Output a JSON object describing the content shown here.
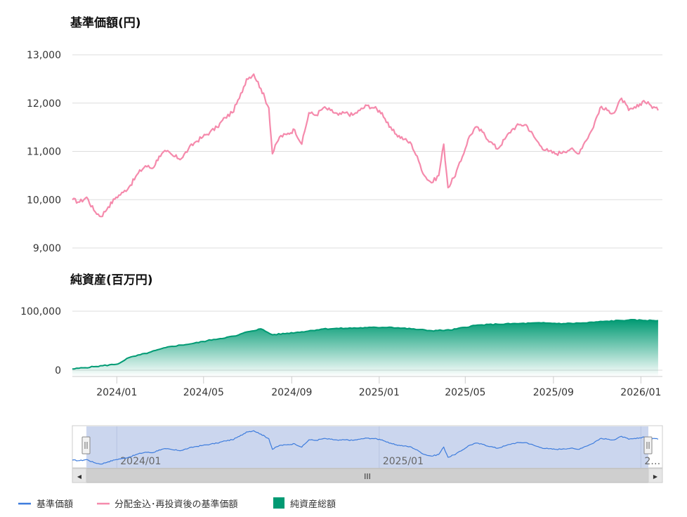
{
  "chart_data": [
    {
      "type": "line",
      "title": "基準価額(円)",
      "ylim": [
        9000,
        13000
      ],
      "yticks": [
        9000,
        10000,
        11000,
        12000,
        13000
      ],
      "ytick_labels": [
        "9,000",
        "10,000",
        "11,000",
        "12,000",
        "13,000"
      ],
      "series": [
        {
          "name": "分配金込･再投資後の基準価額",
          "color": "#f58aac",
          "points": [
            [
              "2023-10-31",
              10000
            ],
            [
              "2023-11-10",
              9950
            ],
            [
              "2023-11-20",
              10050
            ],
            [
              "2023-11-30",
              9780
            ],
            [
              "2023-12-10",
              9650
            ],
            [
              "2023-12-20",
              9850
            ],
            [
              "2023-12-31",
              10050
            ],
            [
              "2024-01-10",
              10150
            ],
            [
              "2024-01-20",
              10300
            ],
            [
              "2024-01-31",
              10550
            ],
            [
              "2024-02-10",
              10700
            ],
            [
              "2024-02-20",
              10650
            ],
            [
              "2024-02-29",
              10900
            ],
            [
              "2024-03-10",
              11000
            ],
            [
              "2024-03-20",
              10900
            ],
            [
              "2024-03-31",
              10850
            ],
            [
              "2024-04-10",
              11050
            ],
            [
              "2024-04-20",
              11200
            ],
            [
              "2024-04-30",
              11300
            ],
            [
              "2024-05-10",
              11400
            ],
            [
              "2024-05-20",
              11500
            ],
            [
              "2024-05-31",
              11700
            ],
            [
              "2024-06-10",
              11800
            ],
            [
              "2024-06-20",
              12100
            ],
            [
              "2024-06-30",
              12500
            ],
            [
              "2024-07-10",
              12600
            ],
            [
              "2024-07-20",
              12300
            ],
            [
              "2024-07-31",
              11900
            ],
            [
              "2024-08-05",
              10950
            ],
            [
              "2024-08-15",
              11300
            ],
            [
              "2024-08-25",
              11350
            ],
            [
              "2024-09-05",
              11450
            ],
            [
              "2024-09-15",
              11150
            ],
            [
              "2024-09-25",
              11800
            ],
            [
              "2024-10-05",
              11750
            ],
            [
              "2024-10-15",
              11900
            ],
            [
              "2024-10-25",
              11850
            ],
            [
              "2024-11-05",
              11750
            ],
            [
              "2024-11-15",
              11800
            ],
            [
              "2024-11-25",
              11750
            ],
            [
              "2024-12-05",
              11850
            ],
            [
              "2024-12-15",
              11950
            ],
            [
              "2024-12-25",
              11900
            ],
            [
              "2025-01-05",
              11800
            ],
            [
              "2025-01-15",
              11500
            ],
            [
              "2025-01-25",
              11350
            ],
            [
              "2025-02-05",
              11250
            ],
            [
              "2025-02-15",
              11150
            ],
            [
              "2025-02-25",
              10800
            ],
            [
              "2025-03-05",
              10500
            ],
            [
              "2025-03-15",
              10350
            ],
            [
              "2025-03-25",
              10500
            ],
            [
              "2025-04-01",
              11150
            ],
            [
              "2025-04-07",
              10250
            ],
            [
              "2025-04-15",
              10450
            ],
            [
              "2025-04-25",
              10800
            ],
            [
              "2025-05-05",
              11250
            ],
            [
              "2025-05-15",
              11500
            ],
            [
              "2025-05-25",
              11400
            ],
            [
              "2025-06-05",
              11200
            ],
            [
              "2025-06-15",
              11050
            ],
            [
              "2025-06-25",
              11250
            ],
            [
              "2025-07-05",
              11450
            ],
            [
              "2025-07-15",
              11550
            ],
            [
              "2025-07-25",
              11550
            ],
            [
              "2025-08-05",
              11300
            ],
            [
              "2025-08-15",
              11100
            ],
            [
              "2025-08-25",
              11000
            ],
            [
              "2025-09-05",
              10950
            ],
            [
              "2025-09-15",
              11000
            ],
            [
              "2025-09-25",
              11050
            ],
            [
              "2025-10-05",
              10950
            ],
            [
              "2025-10-15",
              11200
            ],
            [
              "2025-10-25",
              11450
            ],
            [
              "2025-11-05",
              11900
            ],
            [
              "2025-11-15",
              11850
            ],
            [
              "2025-11-25",
              11800
            ],
            [
              "2025-12-05",
              12100
            ],
            [
              "2025-12-15",
              11850
            ],
            [
              "2025-12-25",
              11900
            ],
            [
              "2026-01-05",
              12050
            ],
            [
              "2026-01-15",
              11950
            ],
            [
              "2026-01-25",
              11850
            ]
          ]
        }
      ]
    },
    {
      "type": "area",
      "title": "純資産(百万円)",
      "ylim": [
        0,
        100000
      ],
      "yticks": [
        0,
        100000
      ],
      "ytick_labels": [
        "0",
        "100,000"
      ],
      "series": [
        {
          "name": "純資産総額",
          "color": "#009a73",
          "points": [
            [
              "2023-10-31",
              2000
            ],
            [
              "2023-11-30",
              6000
            ],
            [
              "2023-12-31",
              10000
            ],
            [
              "2024-01-05",
              12000
            ],
            [
              "2024-01-15",
              20000
            ],
            [
              "2024-02-15",
              30000
            ],
            [
              "2024-03-15",
              40000
            ],
            [
              "2024-04-15",
              45000
            ],
            [
              "2024-05-15",
              52000
            ],
            [
              "2024-06-15",
              58000
            ],
            [
              "2024-07-01",
              65000
            ],
            [
              "2024-07-20",
              70000
            ],
            [
              "2024-08-05",
              60000
            ],
            [
              "2024-09-15",
              65000
            ],
            [
              "2024-10-15",
              70000
            ],
            [
              "2024-11-15",
              71000
            ],
            [
              "2024-12-15",
              72000
            ],
            [
              "2025-01-15",
              73000
            ],
            [
              "2025-02-15",
              70000
            ],
            [
              "2025-03-15",
              67000
            ],
            [
              "2025-04-10",
              68000
            ],
            [
              "2025-05-15",
              76000
            ],
            [
              "2025-06-15",
              78000
            ],
            [
              "2025-07-15",
              79000
            ],
            [
              "2025-08-15",
              80000
            ],
            [
              "2025-09-15",
              79000
            ],
            [
              "2025-10-15",
              80000
            ],
            [
              "2025-11-15",
              83000
            ],
            [
              "2025-12-15",
              85000
            ],
            [
              "2026-01-25",
              84000
            ]
          ]
        }
      ]
    }
  ],
  "x_axis": {
    "range": [
      "2023-10-31",
      "2026-01-31"
    ],
    "ticks": [
      "2024-01-01",
      "2024-05-01",
      "2024-09-01",
      "2025-01-01",
      "2025-05-01",
      "2025-09-01",
      "2026-01-01"
    ],
    "tick_labels": [
      "2024/01",
      "2024/05",
      "2024/09",
      "2025/01",
      "2025/05",
      "2025/09",
      "2026/01"
    ]
  },
  "navigator": {
    "series_name": "基準価額",
    "series_color": "#3d7cdd",
    "tick_labels": [
      "2024/01",
      "2025/01",
      "2…"
    ],
    "scrollbar_grip": "III",
    "left_arrow": "◀",
    "right_arrow": "▶"
  },
  "legend": [
    {
      "label": "基準価額",
      "color": "#3d7cdd",
      "symbol": "line"
    },
    {
      "label": "分配金込･再投資後の基準価額",
      "color": "#f58aac",
      "symbol": "line"
    },
    {
      "label": "純資産総額",
      "color": "#009a73",
      "symbol": "square"
    }
  ]
}
